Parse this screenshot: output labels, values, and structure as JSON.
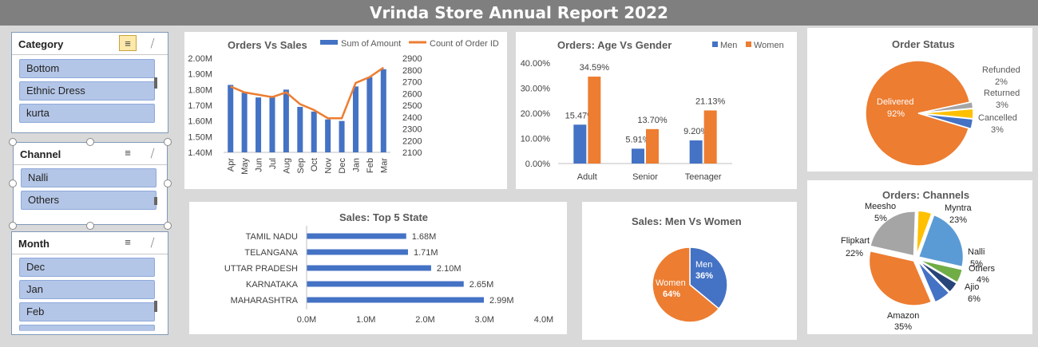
{
  "page": {
    "title": "Vrinda Store Annual Report 2022"
  },
  "slicers": {
    "category": {
      "title": "Category",
      "items": [
        "Bottom",
        "Ethnic Dress",
        "kurta"
      ]
    },
    "channel": {
      "title": "Channel",
      "items": [
        "Nalli",
        "Others"
      ]
    },
    "month": {
      "title": "Month",
      "items": [
        "Dec",
        "Jan",
        "Feb"
      ]
    }
  },
  "charts": {
    "orders_vs_sales": {
      "title": "Orders Vs Sales",
      "legend": [
        "Sum of Amount",
        "Count of Order ID"
      ],
      "colors": {
        "bar": "#4472c4",
        "line": "#ed7d31"
      }
    },
    "age_gender": {
      "title": "Orders: Age Vs Gender",
      "legend": [
        "Men",
        "Women"
      ],
      "colors": {
        "men": "#4472c4",
        "women": "#ed7d31"
      }
    },
    "order_status": {
      "title": "Order Status",
      "labels": {
        "delivered": "Delivered",
        "delivered_pct": "92%",
        "refunded": "Refunded",
        "refunded_pct": "2%",
        "returned": "Returned",
        "returned_pct": "3%",
        "cancelled": "Cancelled",
        "cancelled_pct": "3%"
      }
    },
    "top5_state": {
      "title": "Sales: Top 5 State"
    },
    "men_women": {
      "title": "Sales: Men Vs Women",
      "labels": {
        "men": "Men",
        "men_pct": "36%",
        "women": "Women",
        "women_pct": "64%"
      }
    },
    "channels": {
      "title": "Orders: Channels",
      "labels": [
        {
          "name": "Meesho",
          "pct": "5%"
        },
        {
          "name": "Myntra",
          "pct": "23%"
        },
        {
          "name": "Flipkart",
          "pct": "22%"
        },
        {
          "name": "Nalli",
          "pct": "5%"
        },
        {
          "name": "Others",
          "pct": "4%"
        },
        {
          "name": "Ajio",
          "pct": "6%"
        },
        {
          "name": "Amazon",
          "pct": "35%"
        }
      ]
    }
  },
  "chart_data": [
    {
      "id": "orders_vs_sales",
      "type": "bar",
      "title": "Orders Vs Sales",
      "categories": [
        "Apr",
        "May",
        "Jun",
        "Jul",
        "Aug",
        "Sep",
        "Oct",
        "Nov",
        "Dec",
        "Jan",
        "Feb",
        "Mar"
      ],
      "series": [
        {
          "name": "Sum of Amount",
          "type": "bar",
          "axis": "left",
          "values": [
            1.83,
            1.78,
            1.75,
            1.76,
            1.8,
            1.69,
            1.66,
            1.61,
            1.6,
            1.82,
            1.88,
            1.93
          ]
        },
        {
          "name": "Count of Order ID",
          "type": "line",
          "axis": "right",
          "values": [
            2660,
            2610,
            2590,
            2570,
            2610,
            2510,
            2460,
            2390,
            2390,
            2690,
            2740,
            2820
          ]
        }
      ],
      "ylim_left": [
        1.4,
        2.0
      ],
      "ylim_right": [
        2100,
        2900
      ],
      "yticks_left": [
        "1.40M",
        "1.50M",
        "1.60M",
        "1.70M",
        "1.80M",
        "1.90M",
        "2.00M"
      ],
      "yticks_right": [
        "2100",
        "2200",
        "2300",
        "2400",
        "2500",
        "2600",
        "2700",
        "2800",
        "2900"
      ]
    },
    {
      "id": "age_gender",
      "type": "bar",
      "title": "Orders: Age Vs Gender",
      "categories": [
        "Adult",
        "Senior",
        "Teenager"
      ],
      "series": [
        {
          "name": "Men",
          "values": [
            15.47,
            5.91,
            9.2
          ],
          "labels": [
            "15.47%",
            "5.91%",
            "9.20%"
          ]
        },
        {
          "name": "Women",
          "values": [
            34.59,
            13.7,
            21.13
          ],
          "labels": [
            "34.59%",
            "13.70%",
            "21.13%"
          ]
        }
      ],
      "ylim": [
        0,
        40
      ],
      "yticks": [
        "0.00%",
        "10.00%",
        "20.00%",
        "30.00%",
        "40.00%"
      ]
    },
    {
      "id": "order_status",
      "type": "pie",
      "title": "Order Status",
      "labels": [
        "Delivered",
        "Refunded",
        "Returned",
        "Cancelled"
      ],
      "values": [
        92,
        2,
        3,
        3
      ],
      "colors": [
        "#ed7d31",
        "#a5a5a5",
        "#ffc000",
        "#4472c4"
      ]
    },
    {
      "id": "top5_state",
      "type": "bar",
      "orientation": "horizontal",
      "title": "Sales: Top 5 State",
      "categories": [
        "TAMIL NADU",
        "TELANGANA",
        "UTTAR PRADESH",
        "KARNATAKA",
        "MAHARASHTRA"
      ],
      "values": [
        1.68,
        1.71,
        2.1,
        2.65,
        2.99
      ],
      "labels": [
        "1.68M",
        "1.71M",
        "2.10M",
        "2.65M",
        "2.99M"
      ],
      "xlim": [
        0,
        4
      ],
      "xticks": [
        "0.0M",
        "1.0M",
        "2.0M",
        "3.0M",
        "4.0M"
      ]
    },
    {
      "id": "men_women",
      "type": "pie",
      "title": "Sales: Men Vs Women",
      "labels": [
        "Men",
        "Women"
      ],
      "values": [
        36,
        64
      ],
      "colors": [
        "#4472c4",
        "#ed7d31"
      ]
    },
    {
      "id": "channels",
      "type": "pie",
      "title": "Orders: Channels",
      "labels": [
        "Myntra",
        "Nalli",
        "Others",
        "Ajio",
        "Amazon",
        "Flipkart",
        "Meesho"
      ],
      "values": [
        23,
        5,
        4,
        6,
        35,
        22,
        5
      ],
      "colors": [
        "#5b9bd5",
        "#70ad47",
        "#264478",
        "#4472c4",
        "#ed7d31",
        "#a5a5a5",
        "#ffc000"
      ]
    }
  ]
}
